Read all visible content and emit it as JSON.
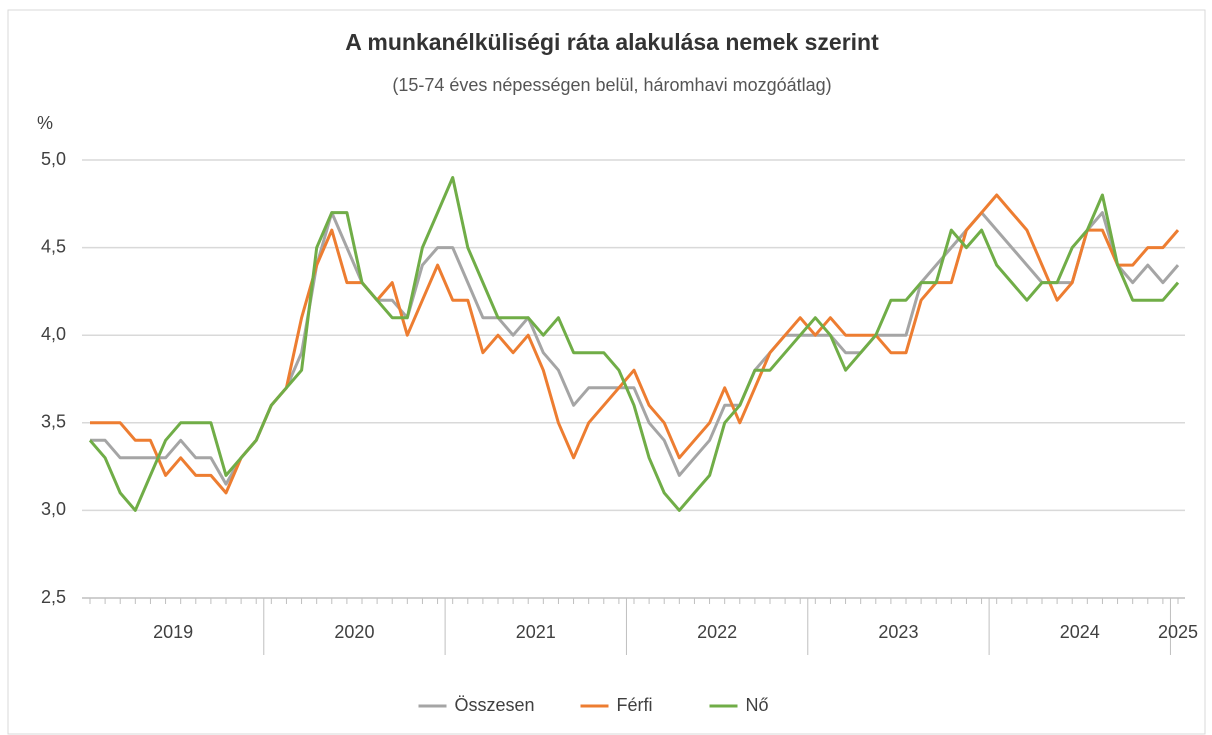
{
  "chart_data": {
    "type": "line",
    "title": "A munkanélküliségi ráta alakulása nemek szerint",
    "subtitle": "(15-74 éves népességen belül, háromhavi mozgóátlag)",
    "y_label": "%",
    "categories": [
      "2019",
      "2019",
      "2019",
      "2019",
      "2019",
      "2019",
      "2019",
      "2019",
      "2019",
      "2019",
      "2019",
      "2019",
      "2020",
      "2020",
      "2020",
      "2020",
      "2020",
      "2020",
      "2020",
      "2020",
      "2020",
      "2020",
      "2020",
      "2020",
      "2021",
      "2021",
      "2021",
      "2021",
      "2021",
      "2021",
      "2021",
      "2021",
      "2021",
      "2021",
      "2021",
      "2021",
      "2022",
      "2022",
      "2022",
      "2022",
      "2022",
      "2022",
      "2022",
      "2022",
      "2022",
      "2022",
      "2022",
      "2022",
      "2023",
      "2023",
      "2023",
      "2023",
      "2023",
      "2023",
      "2023",
      "2023",
      "2023",
      "2023",
      "2023",
      "2023",
      "2024",
      "2024",
      "2024",
      "2024",
      "2024",
      "2024",
      "2024",
      "2024",
      "2024",
      "2024",
      "2024",
      "2024",
      "2025"
    ],
    "series": [
      {
        "name": "Összesen",
        "color": "#a5a5a5",
        "values": [
          3.4,
          3.4,
          3.3,
          3.3,
          3.3,
          3.3,
          3.4,
          3.3,
          3.3,
          3.15,
          3.3,
          3.4,
          3.6,
          3.7,
          3.9,
          4.4,
          4.7,
          4.5,
          4.3,
          4.2,
          4.2,
          4.1,
          4.4,
          4.5,
          4.5,
          4.3,
          4.1,
          4.1,
          4.0,
          4.1,
          3.9,
          3.8,
          3.6,
          3.7,
          3.7,
          3.7,
          3.7,
          3.5,
          3.4,
          3.2,
          3.3,
          3.4,
          3.6,
          3.6,
          3.8,
          3.9,
          4.0,
          4.0,
          4.0,
          4.0,
          3.9,
          3.9,
          4.0,
          4.0,
          4.0,
          4.3,
          4.4,
          4.5,
          4.6,
          4.7,
          4.6,
          4.5,
          4.4,
          4.3,
          4.3,
          4.3,
          4.6,
          4.7,
          4.4,
          4.3,
          4.4,
          4.3,
          4.4
        ]
      },
      {
        "name": "Férfi",
        "color": "#ed7d31",
        "values": [
          3.5,
          3.5,
          3.5,
          3.4,
          3.4,
          3.2,
          3.3,
          3.2,
          3.2,
          3.1,
          3.3,
          3.4,
          3.6,
          3.7,
          4.1,
          4.4,
          4.6,
          4.3,
          4.3,
          4.2,
          4.3,
          4.0,
          4.2,
          4.4,
          4.2,
          4.2,
          3.9,
          4.0,
          3.9,
          4.0,
          3.8,
          3.5,
          3.3,
          3.5,
          3.6,
          3.7,
          3.8,
          3.6,
          3.5,
          3.3,
          3.4,
          3.5,
          3.7,
          3.5,
          3.7,
          3.9,
          4.0,
          4.1,
          4.0,
          4.1,
          4.0,
          4.0,
          4.0,
          3.9,
          3.9,
          4.2,
          4.3,
          4.3,
          4.6,
          4.7,
          4.8,
          4.7,
          4.6,
          4.4,
          4.2,
          4.3,
          4.6,
          4.6,
          4.4,
          4.4,
          4.5,
          4.5,
          4.6
        ]
      },
      {
        "name": "Nő",
        "color": "#70ad47",
        "values": [
          3.4,
          3.3,
          3.1,
          3.0,
          3.2,
          3.4,
          3.5,
          3.5,
          3.5,
          3.2,
          3.3,
          3.4,
          3.6,
          3.7,
          3.8,
          4.5,
          4.7,
          4.7,
          4.3,
          4.2,
          4.1,
          4.1,
          4.5,
          4.7,
          4.9,
          4.5,
          4.3,
          4.1,
          4.1,
          4.1,
          4.0,
          4.1,
          3.9,
          3.9,
          3.9,
          3.8,
          3.6,
          3.3,
          3.1,
          3.0,
          3.1,
          3.2,
          3.5,
          3.6,
          3.8,
          3.8,
          3.9,
          4.0,
          4.1,
          4.0,
          3.8,
          3.9,
          4.0,
          4.2,
          4.2,
          4.3,
          4.3,
          4.6,
          4.5,
          4.6,
          4.4,
          4.3,
          4.2,
          4.3,
          4.3,
          4.5,
          4.6,
          4.8,
          4.4,
          4.2,
          4.2,
          4.2,
          4.3
        ]
      }
    ],
    "ylim": [
      2.5,
      5.0
    ],
    "yticks": [
      {
        "value": 2.5,
        "label": "2,5"
      },
      {
        "value": 3.0,
        "label": "3,0"
      },
      {
        "value": 3.5,
        "label": "3,5"
      },
      {
        "value": 4.0,
        "label": "4,0"
      },
      {
        "value": 4.5,
        "label": "4,5"
      },
      {
        "value": 5.0,
        "label": "5,0"
      }
    ],
    "grid": true,
    "legend": "bottom"
  }
}
